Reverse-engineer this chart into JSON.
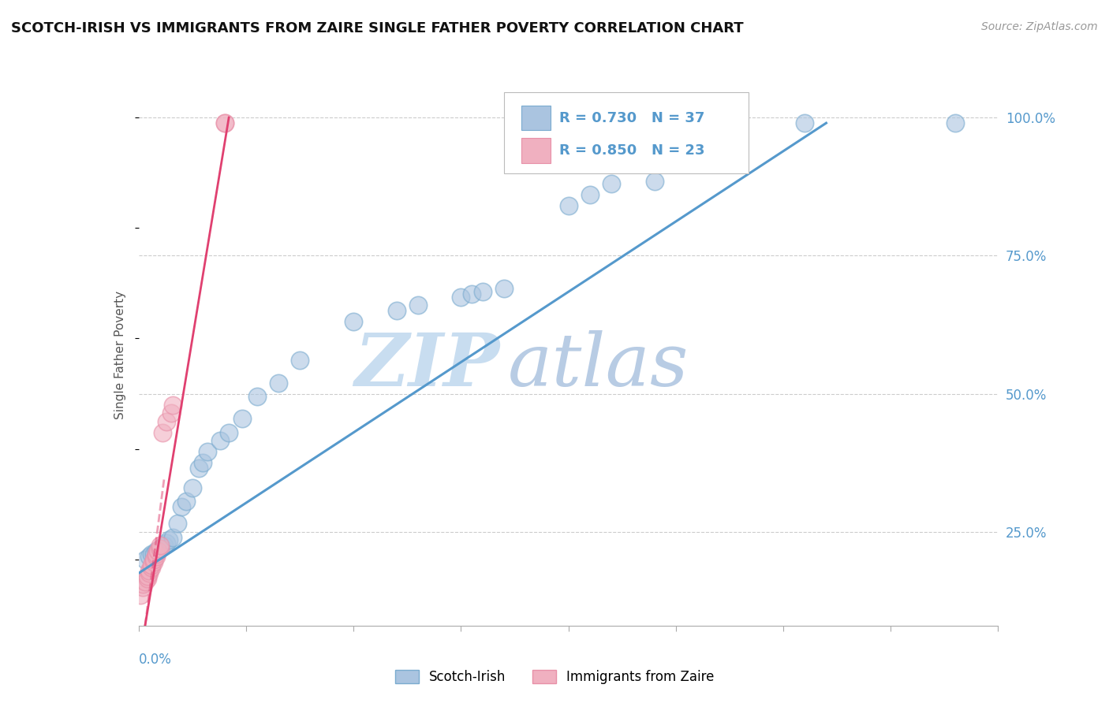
{
  "title": "SCOTCH-IRISH VS IMMIGRANTS FROM ZAIRE SINGLE FATHER POVERTY CORRELATION CHART",
  "source": "Source: ZipAtlas.com",
  "ylabel": "Single Father Poverty",
  "legend_blue_r": "0.730",
  "legend_blue_n": "37",
  "legend_pink_r": "0.850",
  "legend_pink_n": "23",
  "legend_blue_label": "Scotch-Irish",
  "legend_pink_label": "Immigrants from Zaire",
  "blue_color": "#aac4e0",
  "pink_color": "#f0b0c0",
  "blue_edge_color": "#7aabcf",
  "pink_edge_color": "#e890a8",
  "blue_line_color": "#5599cc",
  "pink_line_color": "#e04070",
  "watermark_zip_color": "#c8ddf0",
  "watermark_atlas_color": "#b8cce4",
  "scotch_irish_points": [
    [
      0.003,
      0.2
    ],
    [
      0.005,
      0.205
    ],
    [
      0.006,
      0.21
    ],
    [
      0.007,
      0.21
    ],
    [
      0.008,
      0.215
    ],
    [
      0.009,
      0.215
    ],
    [
      0.01,
      0.22
    ],
    [
      0.012,
      0.225
    ],
    [
      0.013,
      0.23
    ],
    [
      0.014,
      0.235
    ],
    [
      0.016,
      0.24
    ],
    [
      0.018,
      0.265
    ],
    [
      0.02,
      0.295
    ],
    [
      0.022,
      0.305
    ],
    [
      0.025,
      0.33
    ],
    [
      0.028,
      0.365
    ],
    [
      0.03,
      0.375
    ],
    [
      0.032,
      0.395
    ],
    [
      0.038,
      0.415
    ],
    [
      0.042,
      0.43
    ],
    [
      0.048,
      0.455
    ],
    [
      0.055,
      0.495
    ],
    [
      0.065,
      0.52
    ],
    [
      0.075,
      0.56
    ],
    [
      0.1,
      0.63
    ],
    [
      0.12,
      0.65
    ],
    [
      0.13,
      0.66
    ],
    [
      0.15,
      0.675
    ],
    [
      0.155,
      0.68
    ],
    [
      0.16,
      0.685
    ],
    [
      0.17,
      0.69
    ],
    [
      0.2,
      0.84
    ],
    [
      0.21,
      0.86
    ],
    [
      0.22,
      0.88
    ],
    [
      0.24,
      0.885
    ],
    [
      0.31,
      0.99
    ],
    [
      0.38,
      0.99
    ]
  ],
  "zaire_points": [
    [
      0.001,
      0.135
    ],
    [
      0.002,
      0.15
    ],
    [
      0.002,
      0.155
    ],
    [
      0.003,
      0.16
    ],
    [
      0.004,
      0.165
    ],
    [
      0.004,
      0.17
    ],
    [
      0.005,
      0.175
    ],
    [
      0.005,
      0.18
    ],
    [
      0.006,
      0.185
    ],
    [
      0.006,
      0.19
    ],
    [
      0.007,
      0.195
    ],
    [
      0.007,
      0.2
    ],
    [
      0.008,
      0.205
    ],
    [
      0.008,
      0.21
    ],
    [
      0.009,
      0.215
    ],
    [
      0.01,
      0.22
    ],
    [
      0.01,
      0.225
    ],
    [
      0.011,
      0.43
    ],
    [
      0.013,
      0.45
    ],
    [
      0.015,
      0.465
    ],
    [
      0.016,
      0.48
    ],
    [
      0.04,
      0.99
    ],
    [
      0.04,
      0.99
    ]
  ],
  "blue_line": {
    "x0": 0.0,
    "y0": 0.175,
    "x1": 0.32,
    "y1": 0.99
  },
  "pink_line_solid": {
    "x0": 0.003,
    "y0": 0.08,
    "x1": 0.042,
    "y1": 1.0
  },
  "pink_line_dashed": {
    "x0": 0.003,
    "y0": 0.08,
    "x1": 0.012,
    "y1": 0.35
  },
  "xlim": [
    0.0,
    0.4
  ],
  "ylim": [
    0.08,
    1.06
  ],
  "yticks": [
    0.25,
    0.5,
    0.75,
    1.0
  ],
  "ytick_labels": [
    "25.0%",
    "50.0%",
    "75.0%",
    "100.0%"
  ],
  "xtick_left_label": "0.0%"
}
